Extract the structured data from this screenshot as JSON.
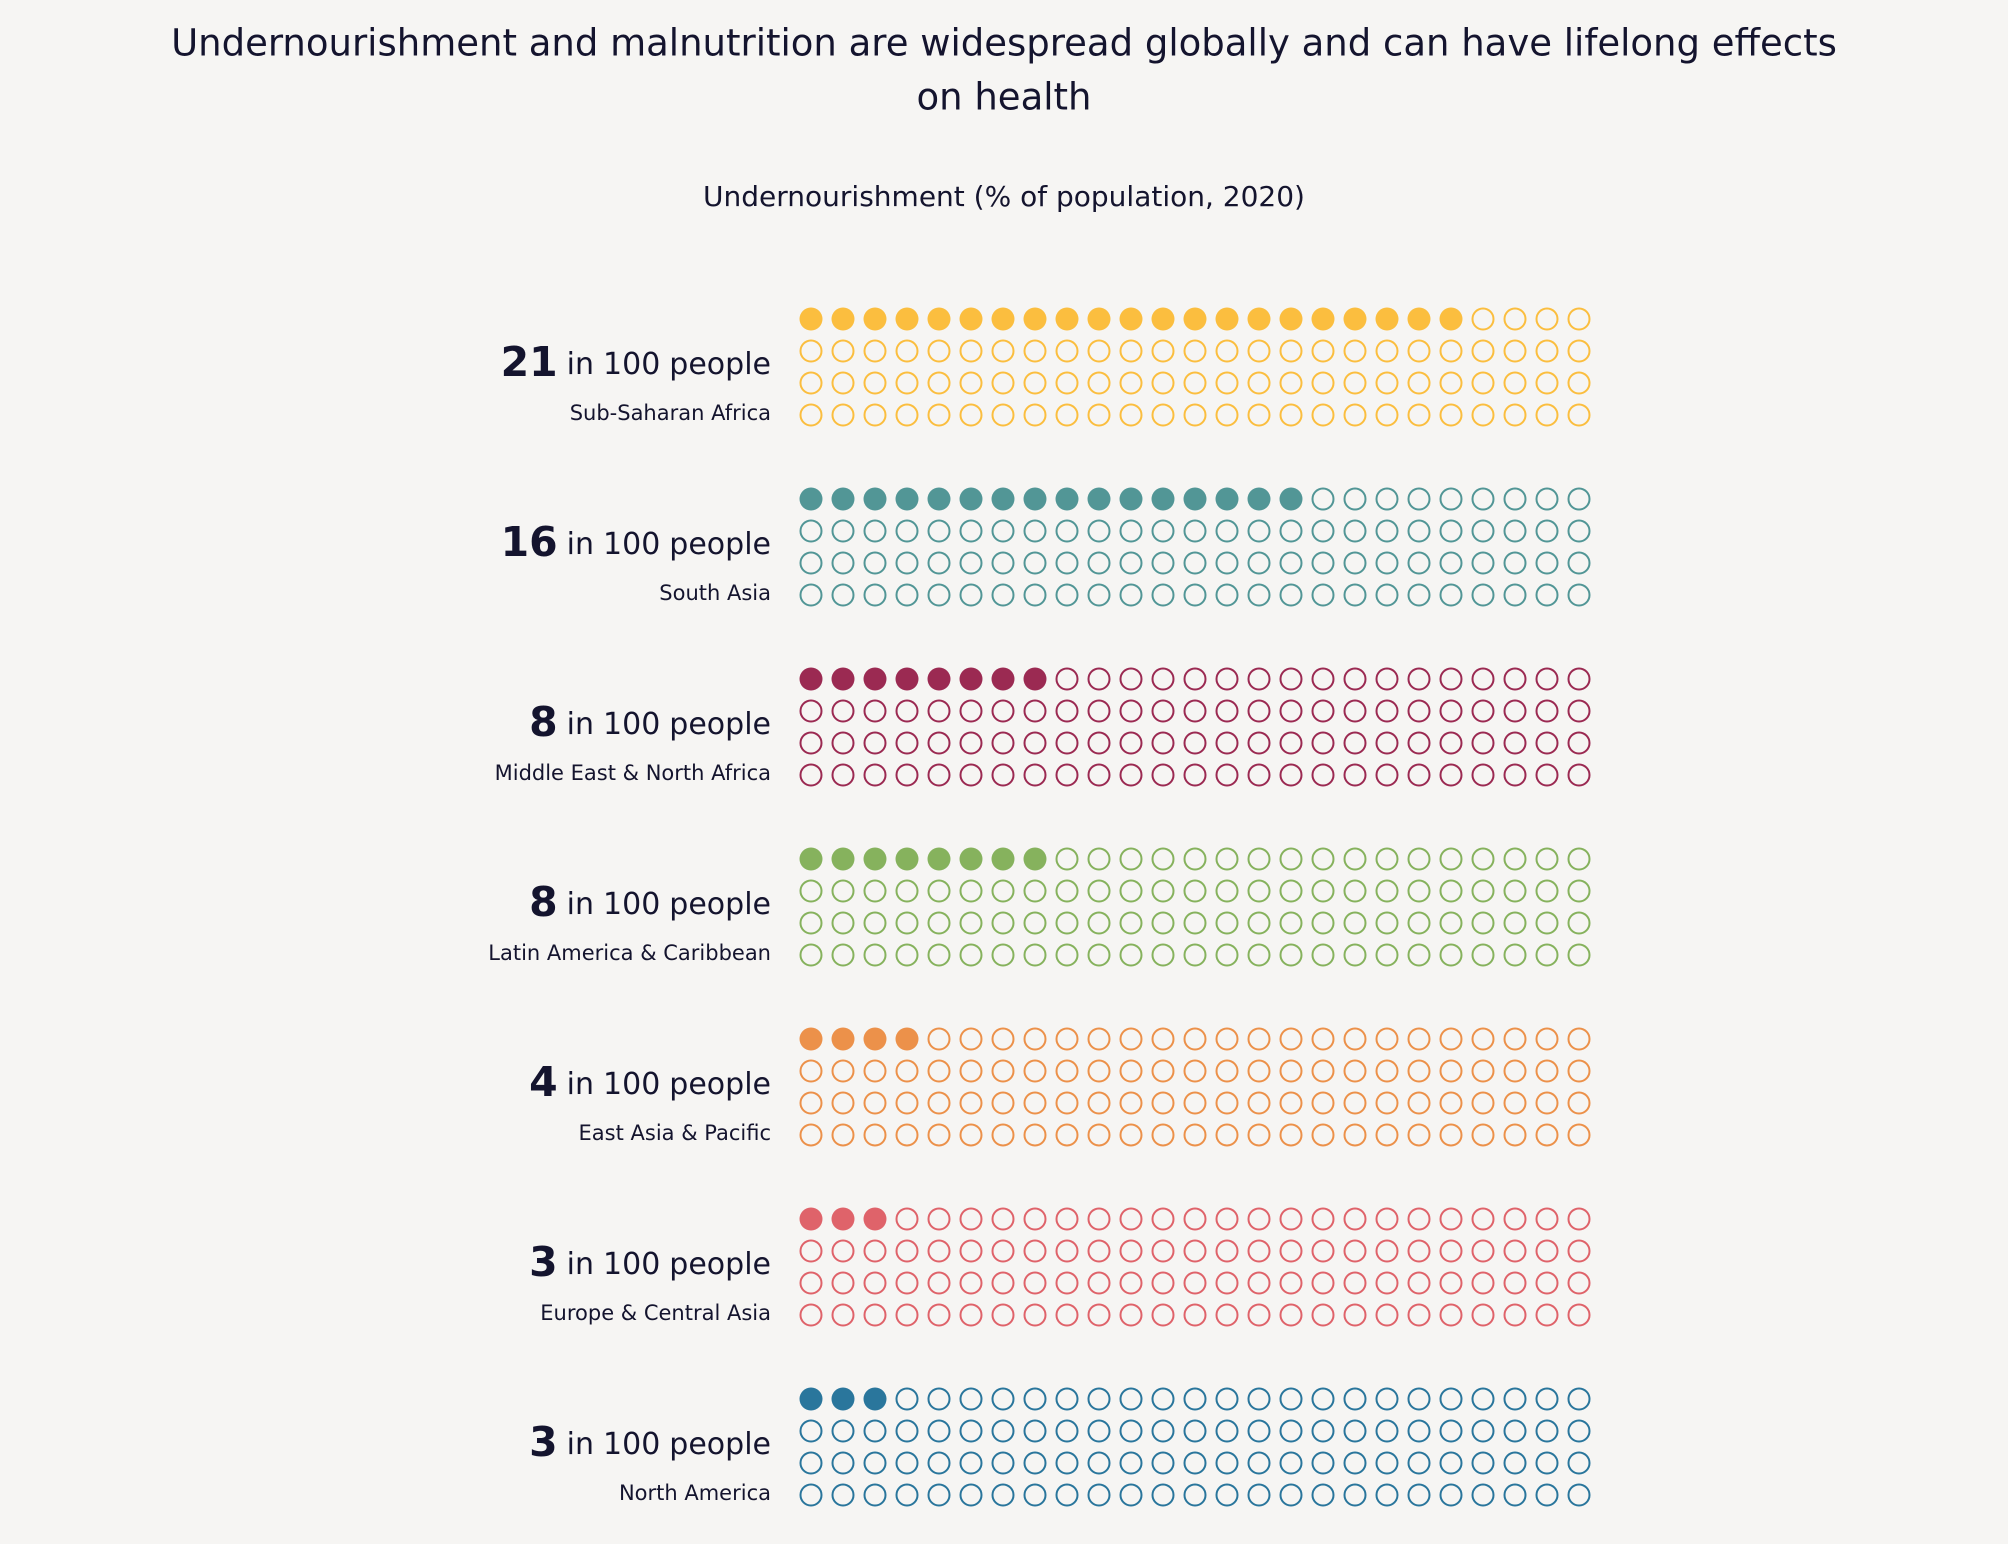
{
  "chart_data": {
    "type": "waffle",
    "title": "Undernourishment and malnutrition are widespread globally and can have lifelong effects",
    "title_line2": "on health",
    "subtitle": "Undernourishment (% of population, 2020)",
    "total": 100,
    "unit_prefix": "in",
    "unit_suffix": "people",
    "categories": [
      "Sub-Saharan Africa",
      "South Asia",
      "Middle East & North Africa",
      "Latin America & Caribbean",
      "East Asia & Pacific",
      "Europe & Central Asia",
      "North America"
    ],
    "values": [
      21,
      16,
      8,
      8,
      4,
      3,
      3
    ],
    "colors": [
      "#fbbe3f",
      "#529696",
      "#9b2a52",
      "#86b25d",
      "#ec914a",
      "#df636a",
      "#2a769c"
    ]
  }
}
